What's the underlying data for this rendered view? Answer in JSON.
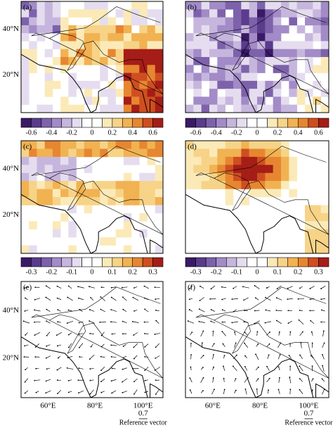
{
  "panels": [
    {
      "label": "(a)"
    },
    {
      "label": "(b)"
    },
    {
      "label": "(c)"
    },
    {
      "label": "(d)"
    },
    {
      "label": "(e)"
    },
    {
      "label": "(f)"
    }
  ],
  "latitude_labels": [
    "40°N",
    "20°N"
  ],
  "longitude_labels": [
    "60°E",
    "80°E",
    "100°E"
  ],
  "colorbars": [
    {
      "ticks": [
        "-0.6",
        "-0.4",
        "-0.2",
        "0",
        "0.2",
        "0.4",
        "0.6"
      ]
    },
    {
      "ticks": [
        "-0.6",
        "-0.4",
        "-0.2",
        "0",
        "0.2",
        "0.4",
        "0.6"
      ]
    },
    {
      "ticks": [
        "-0.3",
        "-0.2",
        "-0.1",
        "0",
        "0.1",
        "0.2",
        "0.3"
      ]
    },
    {
      "ticks": [
        "-0.3",
        "-0.2",
        "-0.1",
        "0",
        "0.1",
        "0.2",
        "0.3"
      ]
    }
  ],
  "reference_vector": {
    "magnitude": "0.7",
    "label": "Reference vector"
  }
}
